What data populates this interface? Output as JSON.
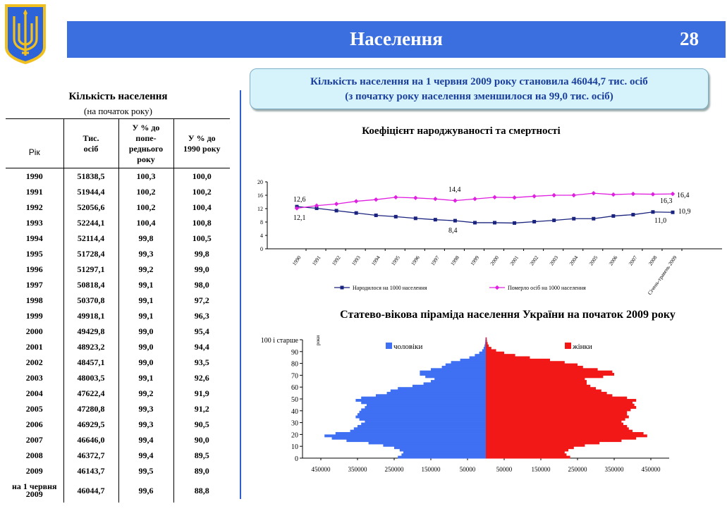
{
  "header": {
    "title": "Населення",
    "page_number": "28"
  },
  "callout": {
    "line1": "Кількість населення на 1 червня 2009 року становила 46044,7 тис. осіб",
    "line2": "(з початку року населення зменшилося на 99,0 тис. осіб)"
  },
  "population_table": {
    "title": "Кількість населення",
    "subtitle": "(на початок року)",
    "headers": [
      "Рік",
      "Тис. осіб",
      "У % до попе-реднього року",
      "У % до 1990 року"
    ],
    "rows": [
      [
        "1990",
        "51838,5",
        "100,3",
        "100,0"
      ],
      [
        "1991",
        "51944,4",
        "100,2",
        "100,2"
      ],
      [
        "1992",
        "52056,6",
        "100,2",
        "100,4"
      ],
      [
        "1993",
        "52244,1",
        "100,4",
        "100,8"
      ],
      [
        "1994",
        "52114,4",
        "99,8",
        "100,5"
      ],
      [
        "1995",
        "51728,4",
        "99,3",
        "99,8"
      ],
      [
        "1996",
        "51297,1",
        "99,2",
        "99,0"
      ],
      [
        "1997",
        "50818,4",
        "99,1",
        "98,0"
      ],
      [
        "1998",
        "50370,8",
        "99,1",
        "97,2"
      ],
      [
        "1999",
        "49918,1",
        "99,1",
        "96,3"
      ],
      [
        "2000",
        "49429,8",
        "99,0",
        "95,4"
      ],
      [
        "2001",
        "48923,2",
        "99,0",
        "94,4"
      ],
      [
        "2002",
        "48457,1",
        "99,0",
        "93,5"
      ],
      [
        "2003",
        "48003,5",
        "99,1",
        "92,6"
      ],
      [
        "2004",
        "47622,4",
        "99,2",
        "91,9"
      ],
      [
        "2005",
        "47280,8",
        "99,3",
        "91,2"
      ],
      [
        "2006",
        "46929,5",
        "99,3",
        "90,5"
      ],
      [
        "2007",
        "46646,0",
        "99,4",
        "90,0"
      ],
      [
        "2008",
        "46372,7",
        "99,4",
        "89,5"
      ],
      [
        "2009",
        "46143,7",
        "99,5",
        "89,0"
      ],
      [
        "на 1 червня 2009",
        "46044,7",
        "99,6",
        "88,8"
      ]
    ]
  },
  "chart_data": [
    {
      "type": "line",
      "title": "Коефіцієнт народжуваності та смертності",
      "x": [
        "1990",
        "1991",
        "1992",
        "1993",
        "1994",
        "1995",
        "1996",
        "1997",
        "1998",
        "1999",
        "2000",
        "2001",
        "2002",
        "2003",
        "2004",
        "2005",
        "2006",
        "2007",
        "2008",
        "Січень-травень 2009"
      ],
      "ylim": [
        0,
        20
      ],
      "yticks": [
        0,
        4,
        8,
        12,
        16,
        20
      ],
      "legend_position": "bottom",
      "series": [
        {
          "name": "Народилося на 1000 населення",
          "color": "#1a237e",
          "values": [
            12.6,
            12.1,
            11.4,
            10.7,
            10.0,
            9.6,
            9.1,
            8.7,
            8.4,
            7.8,
            7.8,
            7.7,
            8.1,
            8.5,
            9.0,
            9.0,
            9.8,
            10.2,
            11.0,
            10.9
          ]
        },
        {
          "name": "Померло осіб на 1000 населення",
          "color": "#e020e0",
          "values": [
            12.1,
            12.9,
            13.4,
            14.2,
            14.7,
            15.4,
            15.2,
            14.9,
            14.4,
            14.9,
            15.4,
            15.3,
            15.7,
            16.0,
            16.0,
            16.6,
            16.2,
            16.4,
            16.3,
            16.4
          ]
        }
      ],
      "annotations": [
        "12,6",
        "12,1",
        "14,4",
        "8,4",
        "16,4",
        "16,3",
        "10,9",
        "11,0"
      ]
    },
    {
      "type": "bar",
      "title": "Статево-вікова піраміда населення України на початок 2009 року",
      "orientation": "horizontal",
      "age_axis_label": "роки",
      "age_ticks": [
        "0",
        "10",
        "20",
        "30",
        "40",
        "50",
        "60",
        "70",
        "80",
        "90",
        "100 і старше"
      ],
      "xticks": [
        "450000",
        "350000",
        "250000",
        "150000",
        "50000",
        "50000",
        "150000",
        "250000",
        "350000",
        "450000"
      ],
      "xlim": [
        -500000,
        500000
      ],
      "ages": [
        0,
        2,
        4,
        6,
        8,
        10,
        12,
        14,
        16,
        18,
        20,
        22,
        24,
        26,
        28,
        30,
        32,
        34,
        36,
        38,
        40,
        42,
        44,
        46,
        48,
        50,
        52,
        54,
        56,
        58,
        60,
        62,
        64,
        66,
        68,
        70,
        72,
        74,
        76,
        78,
        80,
        82,
        84,
        86,
        88,
        90,
        92,
        94,
        96,
        98,
        100
      ],
      "series": [
        {
          "name": "чоловіки",
          "color": "#3f6ff2",
          "values": [
            240000,
            230000,
            225000,
            235000,
            250000,
            280000,
            320000,
            380000,
            420000,
            440000,
            410000,
            370000,
            360000,
            350000,
            340000,
            330000,
            345000,
            355000,
            350000,
            345000,
            340000,
            330000,
            325000,
            340000,
            355000,
            340000,
            300000,
            270000,
            260000,
            240000,
            200000,
            170000,
            150000,
            140000,
            165000,
            180000,
            180000,
            150000,
            120000,
            110000,
            95000,
            70000,
            45000,
            30000,
            18000,
            10000,
            6000,
            3500,
            2200,
            1500,
            1000
          ]
        },
        {
          "name": "жінки",
          "color": "#f21818",
          "values": [
            230000,
            220000,
            215000,
            225000,
            240000,
            270000,
            310000,
            370000,
            410000,
            440000,
            430000,
            400000,
            390000,
            385000,
            375000,
            370000,
            380000,
            390000,
            385000,
            385000,
            395000,
            410000,
            405000,
            400000,
            410000,
            385000,
            345000,
            330000,
            315000,
            300000,
            285000,
            275000,
            275000,
            270000,
            320000,
            350000,
            345000,
            305000,
            265000,
            250000,
            215000,
            175000,
            120000,
            80000,
            50000,
            28000,
            15000,
            8000,
            5000,
            3000,
            2500
          ]
        }
      ]
    }
  ]
}
